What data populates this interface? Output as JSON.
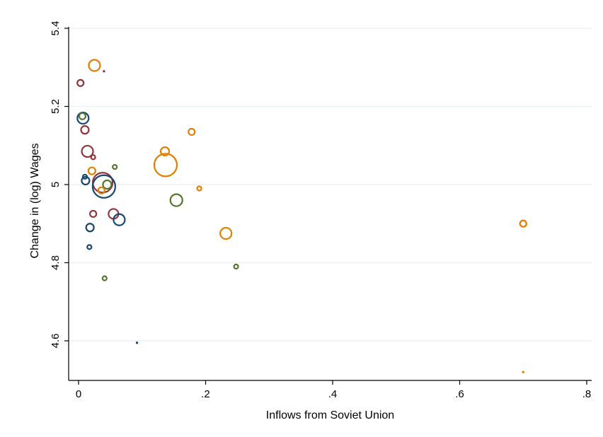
{
  "chart_data": {
    "type": "scatter",
    "title": "",
    "xlabel": "Inflows from Soviet Union",
    "ylabel": "Change in (log) Wages",
    "xlim": [
      0,
      0.8
    ],
    "ylim": [
      4.55,
      5.4
    ],
    "xticks": [
      0,
      0.2,
      0.4,
      0.6,
      0.8
    ],
    "xtick_labels": [
      "0",
      ".2",
      ".4",
      ".6",
      ".8"
    ],
    "yticks": [
      4.6,
      4.8,
      5,
      5.2,
      5.4
    ],
    "ytick_labels": [
      "4.6",
      "4.8",
      "5",
      "5.2",
      "5.4"
    ],
    "grid": true,
    "legend": "none",
    "colors": {
      "blue": "#1a476f",
      "red": "#90353b",
      "green": "#55752f",
      "orange": "#e37e00",
      "grid": "#eaf2f3"
    },
    "points": [
      {
        "x": 0.025,
        "y": 5.305,
        "size": 8,
        "color": "orange"
      },
      {
        "x": 0.04,
        "y": 5.29,
        "size": 1.5,
        "color": "red"
      },
      {
        "x": 0.003,
        "y": 5.26,
        "size": 4.5,
        "color": "red"
      },
      {
        "x": 0.007,
        "y": 5.17,
        "size": 8,
        "color": "blue"
      },
      {
        "x": 0.006,
        "y": 5.175,
        "size": 4.5,
        "color": "green"
      },
      {
        "x": 0.01,
        "y": 5.14,
        "size": 5.5,
        "color": "red"
      },
      {
        "x": 0.014,
        "y": 5.085,
        "size": 8,
        "color": "red"
      },
      {
        "x": 0.023,
        "y": 5.07,
        "size": 3,
        "color": "red"
      },
      {
        "x": 0.178,
        "y": 5.135,
        "size": 4.5,
        "color": "orange"
      },
      {
        "x": 0.136,
        "y": 5.085,
        "size": 6,
        "color": "orange"
      },
      {
        "x": 0.137,
        "y": 5.05,
        "size": 16,
        "color": "orange"
      },
      {
        "x": 0.057,
        "y": 5.045,
        "size": 3,
        "color": "green"
      },
      {
        "x": 0.021,
        "y": 5.035,
        "size": 5,
        "color": "orange"
      },
      {
        "x": 0.01,
        "y": 5.02,
        "size": 3,
        "color": "blue"
      },
      {
        "x": 0.011,
        "y": 5.01,
        "size": 5.5,
        "color": "blue"
      },
      {
        "x": 0.038,
        "y": 5.005,
        "size": 14,
        "color": "red"
      },
      {
        "x": 0.04,
        "y": 4.995,
        "size": 16,
        "color": "blue"
      },
      {
        "x": 0.045,
        "y": 5.0,
        "size": 6,
        "color": "green"
      },
      {
        "x": 0.036,
        "y": 4.985,
        "size": 4.5,
        "color": "orange"
      },
      {
        "x": 0.19,
        "y": 4.99,
        "size": 3,
        "color": "orange"
      },
      {
        "x": 0.154,
        "y": 4.96,
        "size": 8.5,
        "color": "green"
      },
      {
        "x": 0.023,
        "y": 4.925,
        "size": 4.5,
        "color": "red"
      },
      {
        "x": 0.055,
        "y": 4.925,
        "size": 7,
        "color": "red"
      },
      {
        "x": 0.064,
        "y": 4.91,
        "size": 8,
        "color": "blue"
      },
      {
        "x": 0.018,
        "y": 4.89,
        "size": 5.5,
        "color": "blue"
      },
      {
        "x": 0.232,
        "y": 4.875,
        "size": 8,
        "color": "orange"
      },
      {
        "x": 0.7,
        "y": 4.9,
        "size": 4.5,
        "color": "orange"
      },
      {
        "x": 0.017,
        "y": 4.84,
        "size": 3,
        "color": "blue"
      },
      {
        "x": 0.248,
        "y": 4.79,
        "size": 3,
        "color": "green"
      },
      {
        "x": 0.041,
        "y": 4.76,
        "size": 3,
        "color": "green"
      },
      {
        "x": 0.092,
        "y": 4.595,
        "size": 1.5,
        "color": "blue"
      },
      {
        "x": 0.7,
        "y": 4.52,
        "size": 1.5,
        "color": "orange"
      }
    ]
  }
}
